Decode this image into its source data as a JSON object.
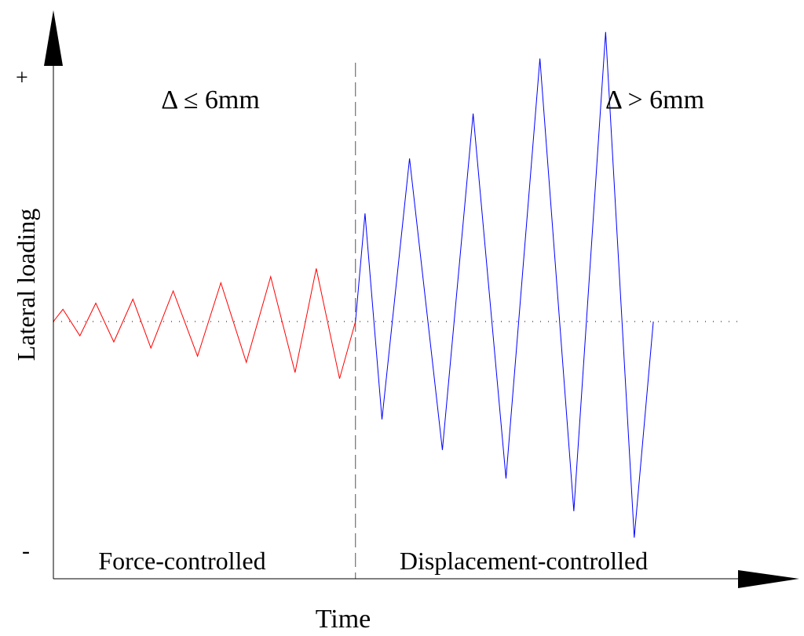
{
  "chart_data": {
    "type": "line",
    "xlabel": "Time",
    "ylabel": "Lateral loading",
    "y_positive_label": "+",
    "y_negative_label": "-",
    "x_ticks_shown": false,
    "y_ticks_shown": false,
    "grid": false,
    "zero_line_style": "dotted",
    "phase_divider_style": "dashed",
    "phases": [
      {
        "label": "Force-controlled",
        "condition": "Δ ≤ 6mm"
      },
      {
        "label": "Displacement-controlled",
        "condition": "Δ > 6mm"
      }
    ],
    "series": [
      {
        "color": "#ff0000",
        "points": [
          [
            0.0,
            0.0
          ],
          [
            0.9,
            0.06
          ],
          [
            2.5,
            -0.07
          ],
          [
            4.0,
            0.09
          ],
          [
            5.7,
            -0.1
          ],
          [
            7.5,
            0.11
          ],
          [
            9.2,
            -0.13
          ],
          [
            11.3,
            0.15
          ],
          [
            13.6,
            -0.17
          ],
          [
            15.8,
            0.19
          ],
          [
            18.2,
            -0.2
          ],
          [
            20.5,
            0.22
          ],
          [
            22.8,
            -0.25
          ],
          [
            24.8,
            0.26
          ],
          [
            27.0,
            -0.28
          ],
          [
            28.5,
            0.0
          ]
        ]
      },
      {
        "color": "#0000ff",
        "points": [
          [
            28.5,
            0.0
          ],
          [
            29.4,
            0.53
          ],
          [
            31.0,
            -0.48
          ],
          [
            33.6,
            0.8
          ],
          [
            36.7,
            -0.63
          ],
          [
            39.6,
            1.02
          ],
          [
            42.7,
            -0.77
          ],
          [
            45.9,
            1.29
          ],
          [
            49.1,
            -0.93
          ],
          [
            52.1,
            1.42
          ],
          [
            54.8,
            -1.06
          ],
          [
            56.6,
            0.0
          ]
        ]
      }
    ]
  }
}
